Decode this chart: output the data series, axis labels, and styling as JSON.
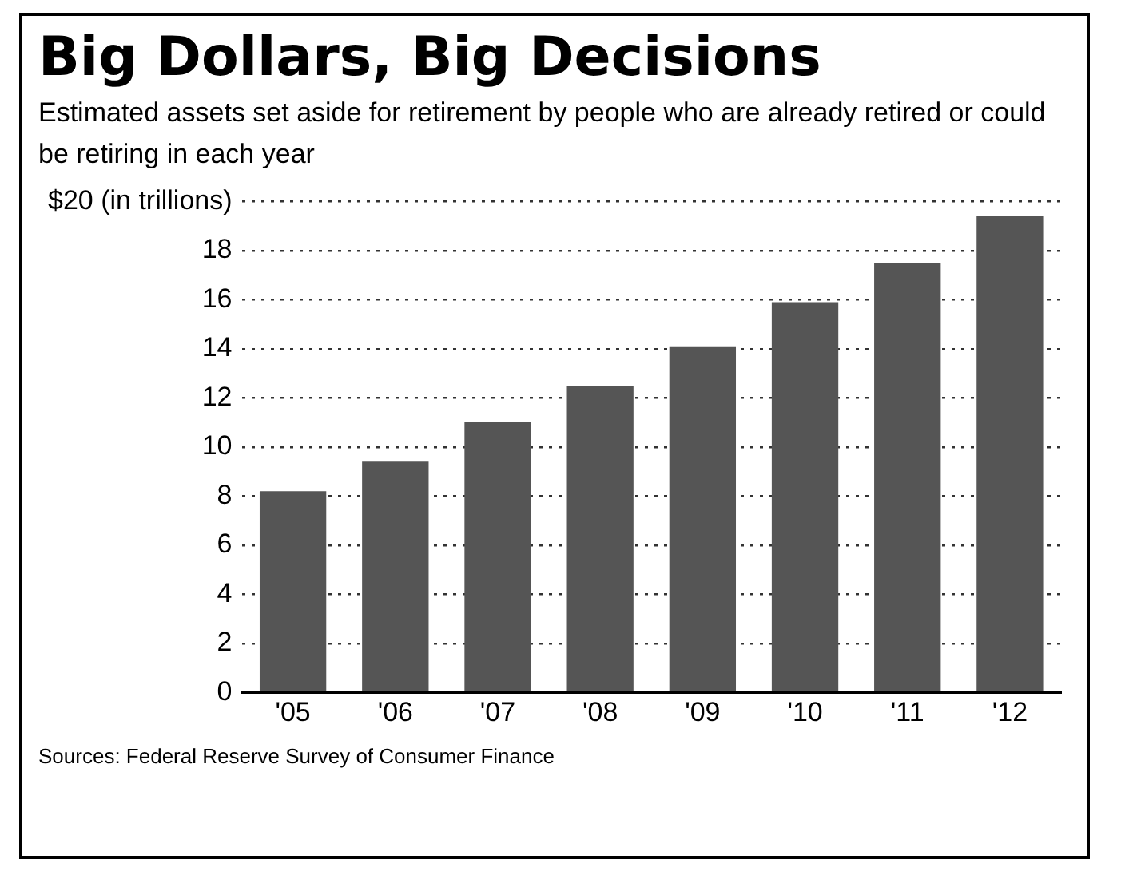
{
  "chart_data": {
    "type": "bar",
    "title": "Big Dollars, Big Decisions",
    "subtitle": "Estimated assets set aside for retirement by people who are already retired or could be retiring in each year",
    "categories": [
      "'05",
      "'06",
      "'07",
      "'08",
      "'09",
      "'10",
      "'11",
      "'12"
    ],
    "values": [
      8.2,
      9.4,
      11.0,
      12.5,
      14.1,
      15.9,
      17.5,
      19.4
    ],
    "color": "#555555",
    "ylim": [
      0,
      20
    ],
    "yticks": [
      0,
      2,
      4,
      6,
      8,
      10,
      12,
      14,
      16,
      18,
      {
        "value": 20,
        "label": "$20 (in trillions)"
      }
    ],
    "grid": "y",
    "legend": false,
    "annotations": [
      "Sources: Federal Reserve Survey of Consumer Finance"
    ]
  }
}
